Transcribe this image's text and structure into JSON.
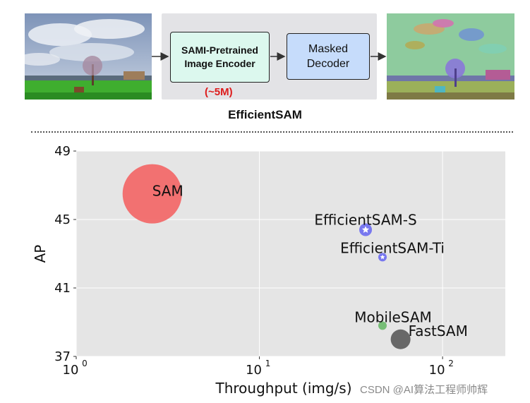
{
  "pipeline": {
    "encoder_line1": "SAMI-Pretrained",
    "encoder_line2": "Image Encoder",
    "decoder_line1": "Masked",
    "decoder_line2": "Decoder",
    "params_label": "(~5M)",
    "caption": "EfficientSAM"
  },
  "chart_data": {
    "type": "scatter",
    "xlabel": "Throughput (img/s)",
    "ylabel": "AP",
    "xscale": "log",
    "xlim": [
      1,
      220
    ],
    "ylim": [
      37,
      49
    ],
    "xticks": [
      1,
      10,
      100
    ],
    "xtick_labels": [
      {
        "base": "10",
        "exp": "0"
      },
      {
        "base": "10",
        "exp": "1"
      },
      {
        "base": "10",
        "exp": "2"
      }
    ],
    "yticks": [
      37,
      41,
      45,
      49
    ],
    "grid": true,
    "background": "#e5e5e5",
    "points": [
      {
        "label": "SAM",
        "x": 2.6,
        "y": 46.5,
        "size": "large",
        "color": "#f26a6a",
        "marker": "circle"
      },
      {
        "label": "EfficientSAM-S",
        "x": 38,
        "y": 44.4,
        "size": "small",
        "color": "#6c6cf0",
        "marker": "star"
      },
      {
        "label": "EfficientSAM-Ti",
        "x": 47,
        "y": 42.8,
        "size": "tiny",
        "color": "#6c6cf0",
        "marker": "star"
      },
      {
        "label": "MobileSAM",
        "x": 47,
        "y": 38.8,
        "size": "tiny",
        "color": "#6ab86a",
        "marker": "circle"
      },
      {
        "label": "FastSAM",
        "x": 59,
        "y": 38.0,
        "size": "medium",
        "color": "#5a5a5a",
        "marker": "circle"
      }
    ]
  },
  "watermark": "CSDN @AI算法工程师帅辉"
}
